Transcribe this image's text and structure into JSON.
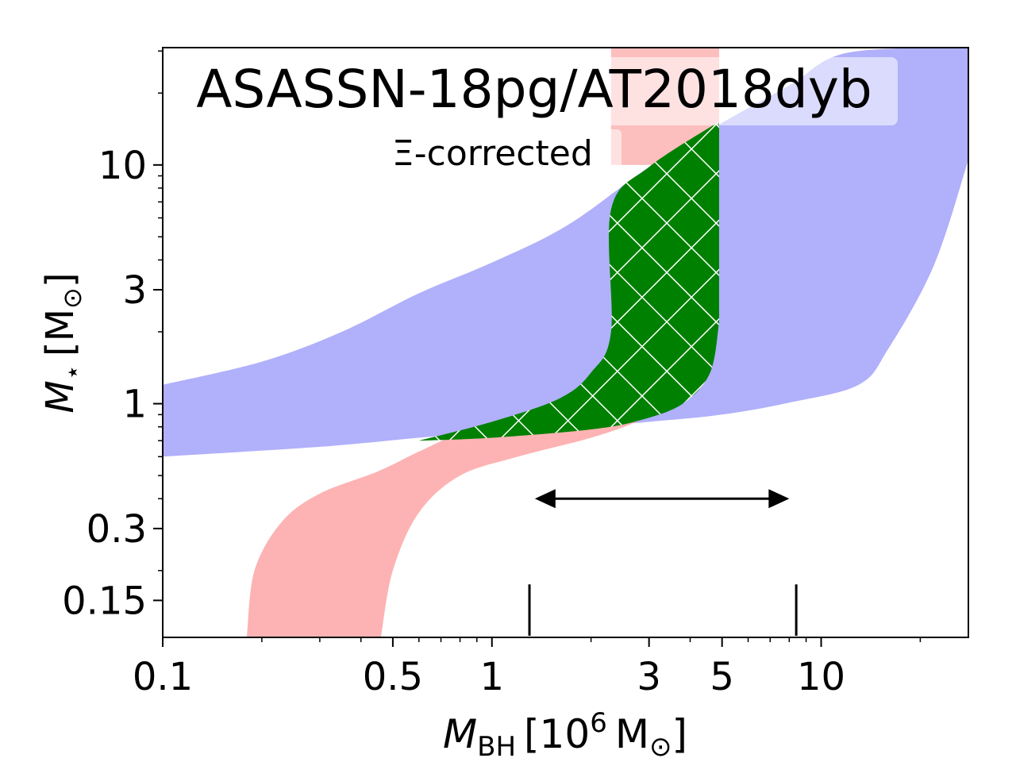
{
  "chart_data": {
    "type": "area",
    "title": "ASASSN-18pg/AT2018dyb",
    "subtitle": "Ξ-corrected",
    "xlabel": {
      "symbol": "M",
      "subscript": "BH",
      "unit_prefix": "[10",
      "unit_exp": "6",
      "unit_suffix": "M",
      "unit_sub": "⊙",
      "close": "]"
    },
    "ylabel": {
      "symbol": "M",
      "subscript": "⋆",
      "unit_open": "[M",
      "unit_sub": "⊙",
      "close": "]"
    },
    "x_scale": "log",
    "y_scale": "log",
    "xlim": [
      0.1,
      28
    ],
    "ylim": [
      0.105,
      31
    ],
    "x_ticks": [
      {
        "value": 0.1,
        "label": "0.1"
      },
      {
        "value": 0.5,
        "label": "0.5"
      },
      {
        "value": 1,
        "label": "1"
      },
      {
        "value": 3,
        "label": "3"
      },
      {
        "value": 5,
        "label": "5"
      },
      {
        "value": 10,
        "label": "10"
      }
    ],
    "y_ticks": [
      {
        "value": 0.15,
        "label": "0.15"
      },
      {
        "value": 0.3,
        "label": "0.3"
      },
      {
        "value": 1,
        "label": "1"
      },
      {
        "value": 3,
        "label": "3"
      },
      {
        "value": 10,
        "label": "10"
      }
    ],
    "series": [
      {
        "name": "blue band",
        "color": "#b0b0fb",
        "upper": [
          [
            0.1,
            1.2
          ],
          [
            0.2,
            1.5
          ],
          [
            0.35,
            2.0
          ],
          [
            0.6,
            2.9
          ],
          [
            1.0,
            3.9
          ],
          [
            1.7,
            5.6
          ],
          [
            3.0,
            9.8
          ],
          [
            5.0,
            15.0
          ],
          [
            8.0,
            21.5
          ],
          [
            12.0,
            29.5
          ],
          [
            28.0,
            31.0
          ]
        ],
        "lower": [
          [
            0.1,
            0.6
          ],
          [
            0.3,
            0.66
          ],
          [
            0.6,
            0.72
          ],
          [
            1.0,
            0.76
          ],
          [
            2.0,
            0.8
          ],
          [
            3.0,
            0.84
          ],
          [
            5.0,
            0.9
          ],
          [
            8.0,
            1.01
          ],
          [
            13.0,
            1.2
          ],
          [
            16.0,
            1.7
          ],
          [
            22.0,
            3.8
          ],
          [
            28.0,
            10.5
          ]
        ]
      },
      {
        "name": "red band",
        "color": "#fdb3b3",
        "upper": [
          [
            0.46,
            0.105
          ],
          [
            0.5,
            0.2
          ],
          [
            0.6,
            0.35
          ],
          [
            0.8,
            0.5
          ],
          [
            1.2,
            0.6
          ],
          [
            2.0,
            0.72
          ],
          [
            2.8,
            0.85
          ],
          [
            3.5,
            1.05
          ]
        ],
        "lower": [
          [
            0.18,
            0.105
          ],
          [
            0.19,
            0.2
          ],
          [
            0.23,
            0.32
          ],
          [
            0.3,
            0.42
          ],
          [
            0.45,
            0.52
          ],
          [
            0.6,
            0.63
          ],
          [
            0.8,
            0.75
          ],
          [
            1.2,
            0.87
          ],
          [
            2.0,
            1.05
          ]
        ],
        "vertical_band": {
          "x": [
            2.3,
            4.9
          ],
          "y": [
            10.0,
            31.0
          ],
          "color": "#fdb3b3"
        }
      },
      {
        "name": "overlap (hatched)",
        "color": "#008000",
        "hatch_color": "#ffffff",
        "top": [
          [
            0.6,
            0.7
          ],
          [
            1.0,
            0.84
          ],
          [
            1.6,
            1.05
          ],
          [
            2.0,
            1.35
          ],
          [
            2.3,
            2.0
          ],
          [
            2.3,
            6.5
          ],
          [
            3.0,
            9.8
          ],
          [
            4.9,
            15.2
          ]
        ],
        "bottom": [
          [
            0.6,
            0.7
          ],
          [
            1.0,
            0.72
          ],
          [
            2.0,
            0.78
          ],
          [
            2.8,
            0.85
          ],
          [
            3.8,
            1.0
          ],
          [
            4.6,
            1.35
          ],
          [
            4.9,
            2.2
          ]
        ]
      }
    ],
    "annotations": {
      "range_arrow": {
        "x_from": 1.35,
        "x_to": 8.0,
        "y": 0.4
      },
      "range_markers": [
        {
          "x": 1.3,
          "y_from": 0.105,
          "y_to": 0.175
        },
        {
          "x": 8.4,
          "y_from": 0.105,
          "y_to": 0.175
        }
      ]
    }
  },
  "colors": {
    "blue": "#b0b0fb",
    "red": "#fdb3b3",
    "green": "#008000",
    "background": "#ffffff",
    "axis": "#000000"
  }
}
